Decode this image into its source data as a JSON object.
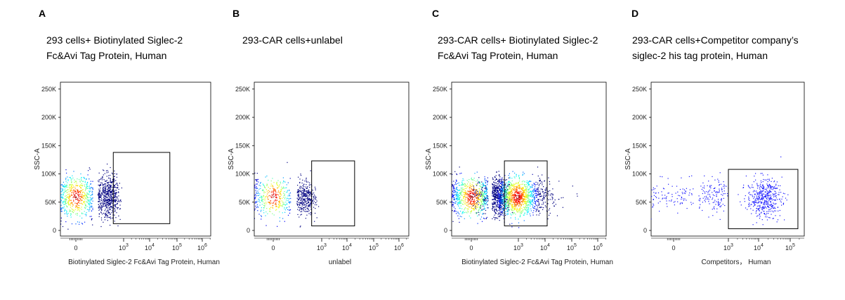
{
  "panels": [
    {
      "letter": "A",
      "title_lines": [
        "293 cells+ Biotinylated Siglec-2",
        "Fc&Avi Tag Protein, Human"
      ]
    },
    {
      "letter": "B",
      "title_lines": [
        "293-CAR cells+unlabel"
      ]
    },
    {
      "letter": "C",
      "title_lines": [
        "293-CAR cells+ Biotinylated Siglec-2",
        "Fc&Avi Tag Protein, Human"
      ]
    },
    {
      "letter": "D",
      "title_lines": [
        "293-CAR cells+Competitor company’s",
        "siglec-2 his tag protein, Human"
      ]
    }
  ],
  "chart_data": [
    {
      "type": "scatter",
      "render": "density",
      "xlabel": "Biotinylated Siglec-2 Fc&Avi Tag Protein, Human",
      "ylabel": "SSC-A",
      "y_ticks": [
        "0",
        "50K",
        "100K",
        "150K",
        "200K",
        "250K"
      ],
      "x_ticks": [
        "0",
        "10^3",
        "10^4",
        "10^5",
        "10^6"
      ],
      "ylim": [
        0,
        262144
      ],
      "gate": {
        "x": [
          400,
          60000
        ],
        "y": [
          12000,
          138000
        ]
      },
      "populations": [
        {
          "center": [
            0,
            60000
          ],
          "spread": [
            260,
            20000
          ],
          "count": 1700
        }
      ]
    },
    {
      "type": "scatter",
      "render": "density",
      "xlabel": "unlabel",
      "ylabel": "SSC-A",
      "y_ticks": [
        "0",
        "50K",
        "100K",
        "150K",
        "200K",
        "250K"
      ],
      "x_ticks": [
        "0",
        "10^3",
        "10^4",
        "10^5",
        "10^6"
      ],
      "ylim": [
        0,
        262144
      ],
      "gate": {
        "x": [
          400,
          20000
        ],
        "y": [
          8000,
          123000
        ]
      },
      "populations": [
        {
          "center": [
            0,
            60000
          ],
          "spread": [
            220,
            17000
          ],
          "count": 1000
        }
      ]
    },
    {
      "type": "scatter",
      "render": "density",
      "xlabel": "Biotinylated Siglec-2 Fc&Avi Tag Protein, Human",
      "ylabel": "SSC-A",
      "y_ticks": [
        "0",
        "50K",
        "100K",
        "150K",
        "200K",
        "250K"
      ],
      "x_ticks": [
        "0",
        "10^3",
        "10^4",
        "10^5",
        "10^6"
      ],
      "ylim": [
        0,
        262144
      ],
      "gate": {
        "x": [
          300,
          12000
        ],
        "y": [
          8000,
          123000
        ]
      },
      "populations": [
        {
          "center": [
            0,
            60000
          ],
          "spread": [
            180,
            16000
          ],
          "count": 1500
        },
        {
          "center": [
            900,
            60000
          ],
          "spread": [
            1.6,
            16000
          ],
          "count": 1300
        }
      ]
    },
    {
      "type": "scatter",
      "render": "dots",
      "xlabel": "Competitors， Human",
      "ylabel": "SSC-A",
      "y_ticks": [
        "0",
        "50K",
        "100K",
        "150K",
        "200K",
        "250K"
      ],
      "x_ticks": [
        "0",
        "10^3",
        "10^4",
        "10^5"
      ],
      "ylim": [
        0,
        262144
      ],
      "gate": {
        "x": [
          1000,
          200000
        ],
        "y": [
          3000,
          108000
        ]
      },
      "populations": [
        {
          "center": [
            0,
            62000
          ],
          "spread": [
            350,
            15000
          ],
          "count": 350
        },
        {
          "center": [
            15000,
            58000
          ],
          "spread": [
            3.5,
            17000
          ],
          "count": 450
        }
      ]
    }
  ]
}
